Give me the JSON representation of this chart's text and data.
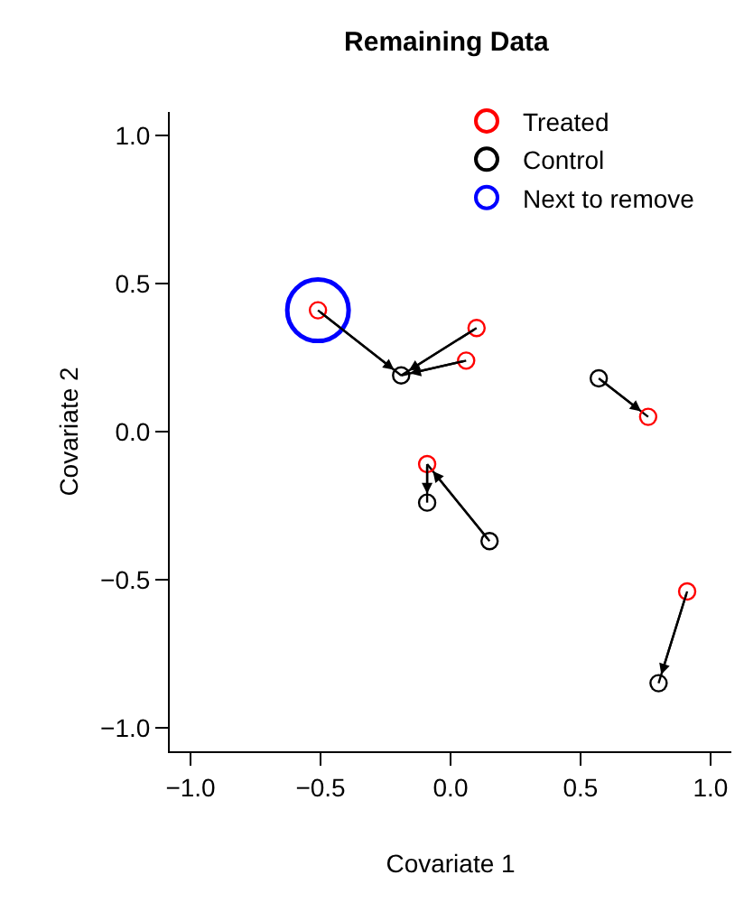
{
  "chart_data": {
    "type": "scatter",
    "title": "Remaining Data",
    "xlabel": "Covariate 1",
    "ylabel": "Covariate 2",
    "xlim": [
      -1.08,
      1.08
    ],
    "ylim": [
      -1.08,
      1.08
    ],
    "xticks": [
      {
        "value": -1,
        "label": "−1.0"
      },
      {
        "value": -0.5,
        "label": "−0.5"
      },
      {
        "value": 0,
        "label": "0.0"
      },
      {
        "value": 0.5,
        "label": "0.5"
      },
      {
        "value": 1,
        "label": "1.0"
      }
    ],
    "yticks": [
      {
        "value": -1,
        "label": "−1.0"
      },
      {
        "value": -0.5,
        "label": "−0.5"
      },
      {
        "value": 0,
        "label": "0.0"
      },
      {
        "value": 0.5,
        "label": "0.5"
      },
      {
        "value": 1,
        "label": "1.0"
      }
    ],
    "legend": "top right",
    "marker": "circle",
    "series": [
      {
        "type": "line",
        "color": "#000000",
        "marker": "none",
        "x": [
          -0.51,
          -0.19,
          null,
          0.1,
          -0.19,
          null,
          0.06,
          -0.19,
          null,
          -0.09,
          -0.09,
          null,
          0.15,
          -0.09,
          null,
          0.57,
          0.76,
          null,
          0.91,
          0.8
        ],
        "values": [
          0.41,
          0.19,
          null,
          0.35,
          0.19,
          null,
          0.24,
          0.19,
          null,
          -0.11,
          -0.24,
          null,
          -0.37,
          -0.11,
          null,
          0.18,
          0.05,
          null,
          -0.54,
          -0.85
        ]
      },
      {
        "name": "Treated",
        "color": "#ff0000",
        "x": [
          -0.51,
          0.1,
          0.06,
          -0.09,
          0.76,
          0.91
        ],
        "values": [
          0.41,
          0.35,
          0.24,
          -0.11,
          0.05,
          -0.54
        ]
      },
      {
        "name": "Control",
        "color": "#000000",
        "x": [
          -0.19,
          -0.09,
          0.15,
          0.57,
          0.8
        ],
        "values": [
          0.19,
          -0.24,
          -0.37,
          0.18,
          -0.85
        ]
      },
      {
        "name": "Next to remove",
        "color": "#0000ff",
        "x": [
          -0.51
        ],
        "values": [
          0.41
        ]
      }
    ]
  }
}
